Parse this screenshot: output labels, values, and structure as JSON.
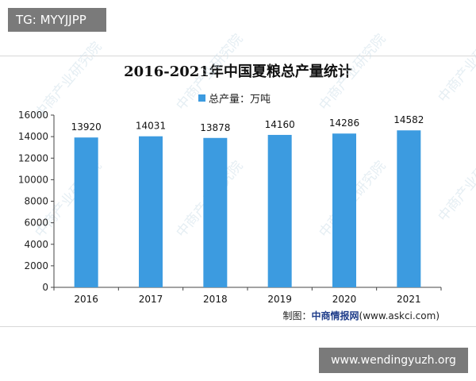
{
  "badge_top": "TG: MYYJJPP",
  "badge_bottom": "www.wendingyuzh.org",
  "watermark_text": "中商产业研究院",
  "source": {
    "prefix": "制图：",
    "brand": "中商情报网",
    "url": "(www.askci.com)"
  },
  "colors": {
    "bar": "#3c9be0",
    "axis": "#444444",
    "frame": "#d8d8d8"
  },
  "chart_data": {
    "type": "bar",
    "title": "2016-2021年中国夏粮总产量统计",
    "legend_position": "top",
    "grid": false,
    "categories": [
      "2016",
      "2017",
      "2018",
      "2019",
      "2020",
      "2021"
    ],
    "series": [
      {
        "name": "总产量：万吨",
        "values": [
          13920,
          14031,
          13878,
          14160,
          14286,
          14582
        ]
      }
    ],
    "data_labels": [
      "13920",
      "14031",
      "13878",
      "14160",
      "14286",
      "14582"
    ],
    "ylim": [
      0,
      16000
    ],
    "yticks": [
      0,
      2000,
      4000,
      6000,
      8000,
      10000,
      12000,
      14000,
      16000
    ],
    "xlabel": "",
    "ylabel": ""
  }
}
